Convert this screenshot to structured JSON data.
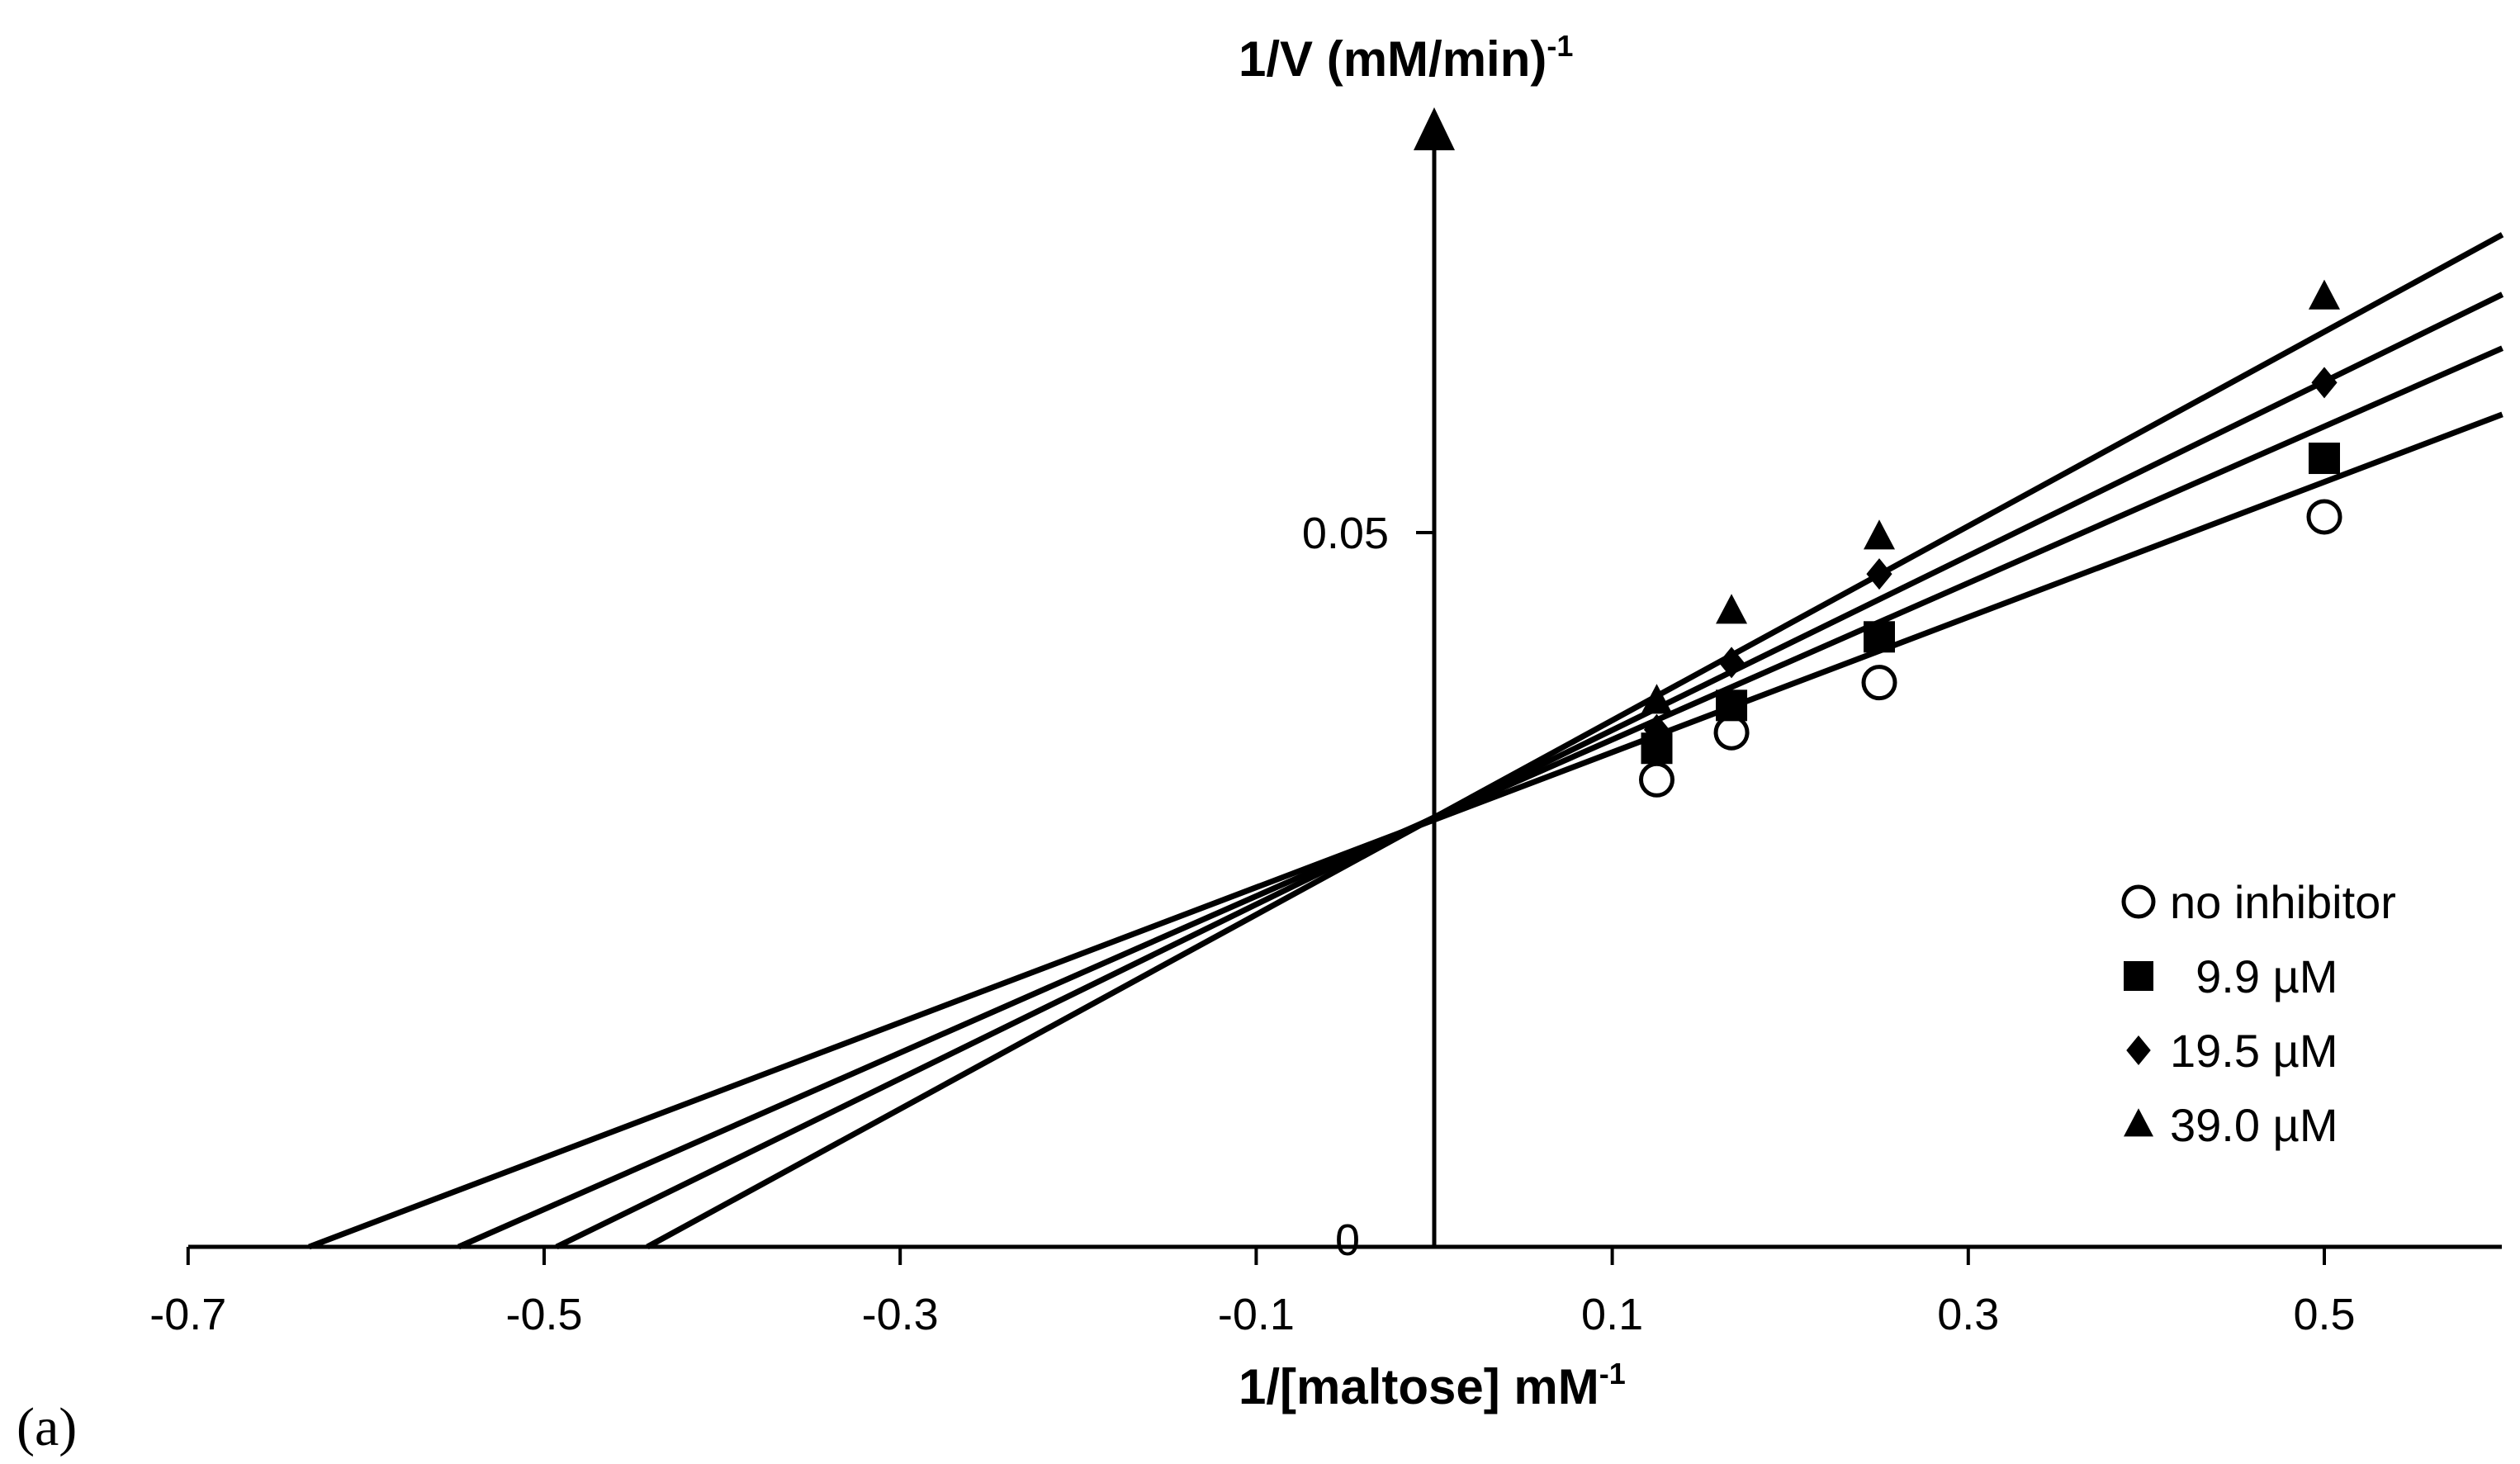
{
  "panel_label": "(a)",
  "chart_data": {
    "type": "scatter",
    "subtype": "lineweaver-burk",
    "xlabel": "1/[maltose] mM",
    "xlabel_sup": "-1",
    "ylabel": "1/V (mM/min)",
    "ylabel_sup": "-1",
    "xlim": [
      -0.7,
      0.6
    ],
    "ylim": [
      0,
      0.08
    ],
    "x_ticks": [
      -0.7,
      -0.5,
      -0.3,
      -0.1,
      0.1,
      0.3,
      0.5
    ],
    "x_tick_labels": [
      "-0.7",
      "-0.5",
      "-0.3",
      "-0.1",
      "0.1",
      "0.3",
      "0.5"
    ],
    "y_ticks": [
      0,
      0.05
    ],
    "y_tick_labels": [
      "0",
      "0.05"
    ],
    "grid": false,
    "legend_position": "bottom-right",
    "series": [
      {
        "name": "no inhibitor",
        "marker": "open-circle",
        "x": [
          0.125,
          0.167,
          0.25,
          0.5
        ],
        "y": [
          0.0327,
          0.036,
          0.0395,
          0.0511
        ],
        "fit": {
          "x_intercept": -0.632,
          "slope": 0.0473
        }
      },
      {
        "name": "  9.9 µM",
        "marker": "square",
        "x": [
          0.125,
          0.167,
          0.25,
          0.5
        ],
        "y": [
          0.0349,
          0.0379,
          0.0427,
          0.0552
        ],
        "fit": {
          "x_intercept": -0.548,
          "slope": 0.0548
        }
      },
      {
        "name": "19.5 µM",
        "marker": "diamond",
        "x": [
          0.125,
          0.167,
          0.25,
          0.5
        ],
        "y": [
          0.0362,
          0.0409,
          0.0471,
          0.0605
        ],
        "fit": {
          "x_intercept": -0.493,
          "slope": 0.061
        }
      },
      {
        "name": "39.0 µM",
        "marker": "triangle",
        "x": [
          0.125,
          0.167,
          0.25,
          0.5
        ],
        "y": [
          0.0382,
          0.0445,
          0.0497,
          0.0665
        ],
        "fit": {
          "x_intercept": -0.442,
          "slope": 0.068
        }
      }
    ]
  }
}
